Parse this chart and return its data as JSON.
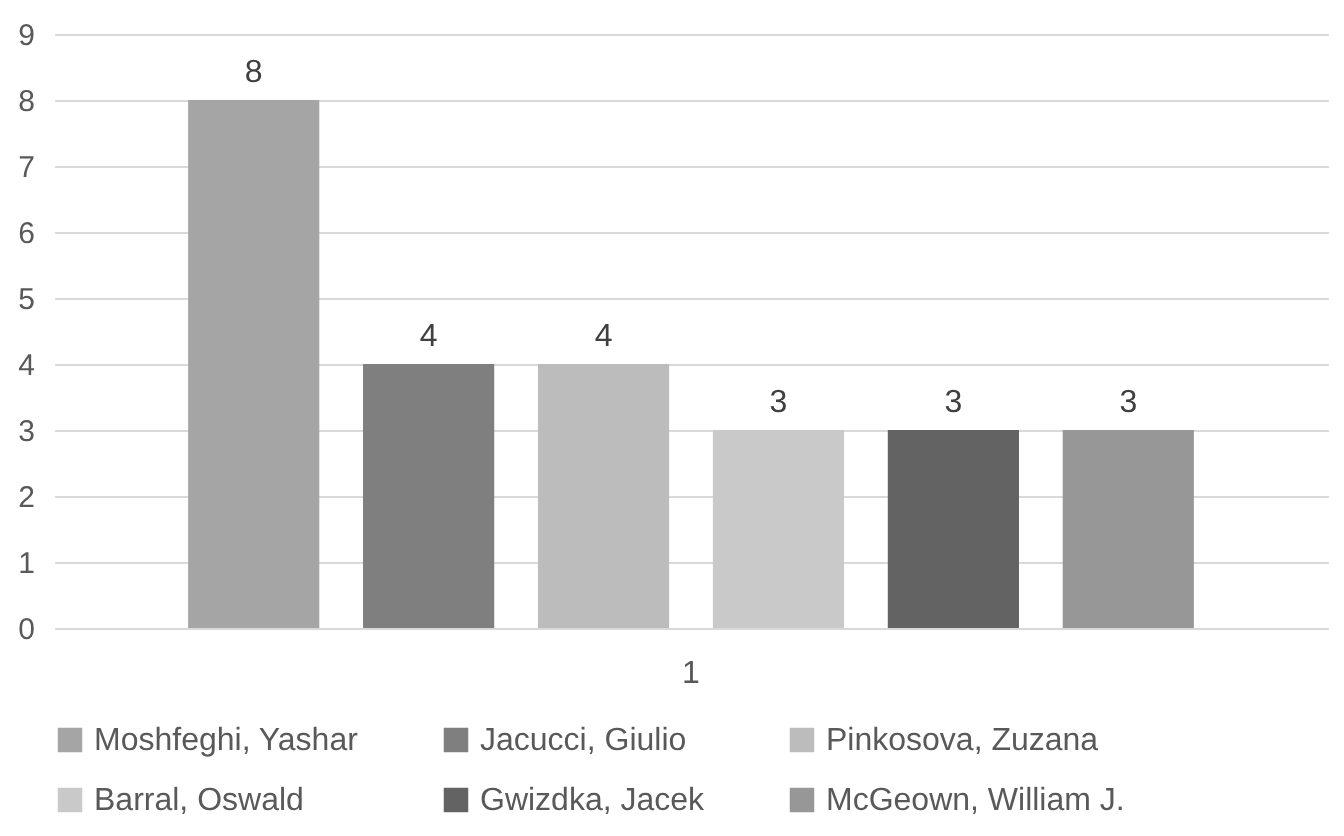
{
  "chart_data": {
    "type": "bar",
    "categories": [
      "1"
    ],
    "series": [
      {
        "name": "Moshfeghi, Yashar",
        "color": "#a5a5a5",
        "values": [
          8
        ]
      },
      {
        "name": "Jacucci, Giulio",
        "color": "#7f7f7f",
        "values": [
          4
        ]
      },
      {
        "name": "Pinkosova, Zuzana",
        "color": "#bcbcbc",
        "values": [
          4
        ]
      },
      {
        "name": "Barral, Oswald",
        "color": "#c9c9c9",
        "values": [
          3
        ]
      },
      {
        "name": "Gwizdka, Jacek",
        "color": "#636363",
        "values": [
          3
        ]
      },
      {
        "name": "McGeown, William J.",
        "color": "#979797",
        "values": [
          3
        ]
      }
    ],
    "ylim": [
      0,
      9
    ],
    "yticks": [
      0,
      1,
      2,
      3,
      4,
      5,
      6,
      7,
      8,
      9
    ],
    "grid": "y",
    "legend": "bottom",
    "data_labels": true
  }
}
